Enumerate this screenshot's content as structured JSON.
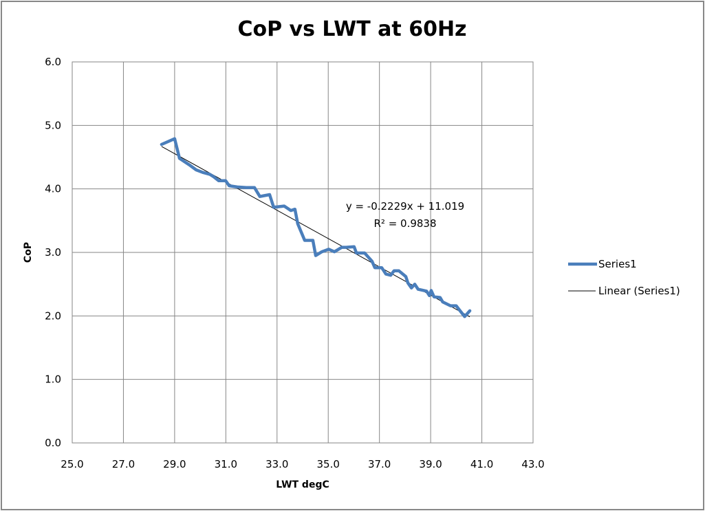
{
  "chart_data": {
    "type": "line",
    "title": "CoP vs LWT at 60Hz",
    "xlabel": "LWT degC",
    "ylabel": "CoP",
    "xlim": [
      25.0,
      43.0
    ],
    "ylim": [
      0.0,
      6.0
    ],
    "x_ticks": [
      "25.0",
      "27.0",
      "29.0",
      "31.0",
      "33.0",
      "35.0",
      "37.0",
      "39.0",
      "41.0",
      "43.0"
    ],
    "y_ticks": [
      "0.0",
      "1.0",
      "2.0",
      "3.0",
      "4.0",
      "5.0",
      "6.0"
    ],
    "x_tick_values": [
      25,
      27,
      29,
      31,
      33,
      35,
      37,
      39,
      41,
      43
    ],
    "y_tick_values": [
      0,
      1,
      2,
      3,
      4,
      5,
      6
    ],
    "grid": true,
    "legend_position": "right",
    "series": [
      {
        "name": "Series1",
        "color": "#4A7EBB",
        "x": [
          28.49,
          29.0,
          29.19,
          29.57,
          29.84,
          30.1,
          30.37,
          30.53,
          30.72,
          30.99,
          31.13,
          31.45,
          31.8,
          32.12,
          32.33,
          32.71,
          32.87,
          33.28,
          33.54,
          33.7,
          33.81,
          34.08,
          34.4,
          34.51,
          34.75,
          35.02,
          35.24,
          35.53,
          35.7,
          36.01,
          36.1,
          36.42,
          36.71,
          36.82,
          37.09,
          37.25,
          37.44,
          37.57,
          37.76,
          38.03,
          38.11,
          38.25,
          38.38,
          38.51,
          38.84,
          38.95,
          39.02,
          39.13,
          39.37,
          39.47,
          39.78,
          40.0,
          40.13,
          40.33,
          40.53
        ],
        "y": [
          4.7,
          4.79,
          4.48,
          4.38,
          4.3,
          4.26,
          4.23,
          4.19,
          4.13,
          4.13,
          4.05,
          4.03,
          4.02,
          4.02,
          3.88,
          3.91,
          3.71,
          3.73,
          3.66,
          3.68,
          3.45,
          3.19,
          3.19,
          2.95,
          3.01,
          3.05,
          3.01,
          3.08,
          3.08,
          3.09,
          2.99,
          2.99,
          2.86,
          2.76,
          2.76,
          2.66,
          2.64,
          2.71,
          2.71,
          2.62,
          2.52,
          2.44,
          2.5,
          2.42,
          2.39,
          2.32,
          2.4,
          2.3,
          2.29,
          2.22,
          2.16,
          2.16,
          2.09,
          1.99,
          2.08
        ]
      }
    ],
    "trendline": {
      "name": "Linear (Series1)",
      "color": "#000000",
      "slope": -0.2229,
      "intercept": 11.019,
      "x_range": [
        28.49,
        40.53
      ],
      "equation_label": "y = -0.2229x + 11.019",
      "r2_label": "R² = 0.9838"
    },
    "legend": [
      "Series1",
      "Linear (Series1)"
    ]
  }
}
